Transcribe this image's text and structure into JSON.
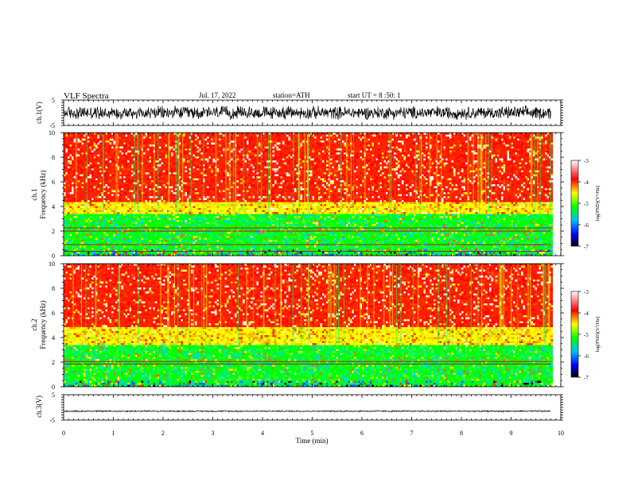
{
  "header": {
    "title": "VLF Spectra",
    "date": "Jul. 17, 2022",
    "station": "station=ATH",
    "start_ut": "start UT =  8 :50: 1"
  },
  "chart_data": [
    {
      "id": "ch1-waveform",
      "type": "line",
      "ylabel": "ch.1(V)",
      "ylim": [
        -5,
        5
      ],
      "y_ticks": [
        "5",
        "-5"
      ],
      "xlim": [
        0,
        10
      ],
      "data_extent": [
        0,
        9.8
      ],
      "line_color": "#000000",
      "mean": 0.0,
      "envelope": [
        -3,
        3
      ]
    },
    {
      "id": "ch1-spectrogram",
      "type": "heatmap",
      "title_lines": [
        "ch.1",
        "Frequency (kHz)"
      ],
      "ylim": [
        0,
        10
      ],
      "y_ticks": [
        "0",
        "2",
        "4",
        "6",
        "8",
        "10"
      ],
      "xlim": [
        0,
        10
      ],
      "data_extent": [
        0,
        9.8
      ],
      "bands": [
        {
          "freq": [
            0,
            0.5
          ],
          "level": "green-blue"
        },
        {
          "freq": [
            0.5,
            3.5
          ],
          "level": "green-cyan"
        },
        {
          "freq": [
            3.5,
            4.5
          ],
          "level": "yellow"
        },
        {
          "freq": [
            4.5,
            10
          ],
          "level": "red"
        }
      ],
      "lines_khz": [
        0.35,
        0.9,
        2.0,
        2.25
      ]
    },
    {
      "id": "ch2-spectrogram",
      "type": "heatmap",
      "title_lines": [
        "ch.2",
        "Frequency (kHz)"
      ],
      "ylim": [
        0,
        10
      ],
      "y_ticks": [
        "0",
        "2",
        "4",
        "6",
        "8",
        "10"
      ],
      "xlim": [
        0,
        10
      ],
      "data_extent": [
        0,
        9.8
      ],
      "bands": [
        {
          "freq": [
            0,
            0.5
          ],
          "level": "green-blue"
        },
        {
          "freq": [
            0.5,
            3.5
          ],
          "level": "green-cyan"
        },
        {
          "freq": [
            3.5,
            5.0
          ],
          "level": "yellow"
        },
        {
          "freq": [
            5.0,
            10
          ],
          "level": "red"
        }
      ],
      "lines_khz": [
        1.85,
        2.05
      ]
    },
    {
      "id": "ch3-waveform",
      "type": "line",
      "ylabel": "ch.3(V)",
      "ylim": [
        -5,
        5
      ],
      "y_ticks": [
        "5",
        "-5"
      ],
      "xlim": [
        0,
        10
      ],
      "data_extent": [
        0,
        9.8
      ],
      "line_color": "#000000",
      "mean": -1.5,
      "envelope": [
        -1.8,
        -1.2
      ]
    }
  ],
  "x_axis": {
    "label": "Time (min)",
    "ticks": [
      "0",
      "1",
      "2",
      "3",
      "4",
      "5",
      "6",
      "7",
      "8",
      "9",
      "10"
    ],
    "range": [
      0,
      10
    ]
  },
  "colorbar": {
    "label": "log(PSD)(V²/Hz)",
    "ticks": [
      "-3",
      "-4",
      "-5",
      "-6",
      "-7"
    ],
    "range": [
      -7,
      -3
    ],
    "stops": [
      "#000000",
      "#0000ff",
      "#00bfff",
      "#00ff00",
      "#ffff00",
      "#ff0000",
      "#ffffff"
    ]
  }
}
